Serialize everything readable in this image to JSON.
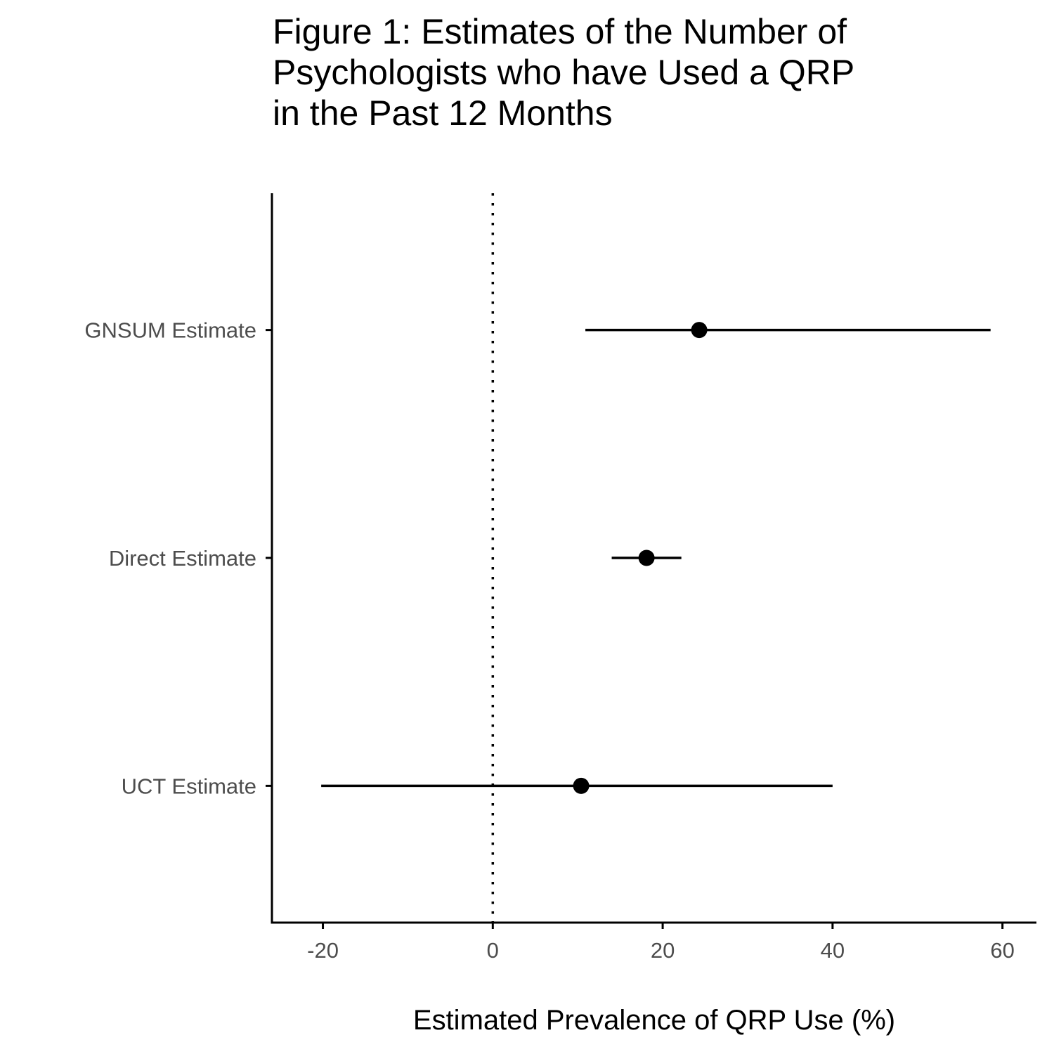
{
  "title": {
    "lines": [
      "Figure 1: Estimates of the Number of",
      "Psychologists who have Used a QRP",
      "in the Past 12 Months"
    ]
  },
  "chart_data": {
    "type": "pointrange",
    "title": "Figure 1: Estimates of the Number of Psychologists who have Used a QRP in the Past 12 Months",
    "xlabel": "Estimated Prevalence of QRP Use (%)",
    "ylabel": "",
    "xlim": [
      -26,
      64
    ],
    "x_ticks": [
      -20,
      0,
      20,
      40,
      60
    ],
    "x_tick_labels": [
      "-20",
      "0",
      "20",
      "40",
      "60"
    ],
    "reference_line": {
      "x": 0,
      "style": "dotted"
    },
    "categories": [
      "GNSUM Estimate",
      "Direct Estimate",
      "UCT Estimate"
    ],
    "points": [
      {
        "label": "GNSUM Estimate",
        "estimate": 24.3,
        "lower": 10.9,
        "upper": 58.6
      },
      {
        "label": "Direct Estimate",
        "estimate": 18.1,
        "lower": 14.0,
        "upper": 22.2
      },
      {
        "label": "UCT Estimate",
        "estimate": 10.4,
        "lower": -20.2,
        "upper": 40.0
      }
    ],
    "grid": false,
    "legend": "none",
    "colors": {
      "point": "#000000",
      "axis": "#000000",
      "tick_text": "#4d4d4d"
    }
  }
}
